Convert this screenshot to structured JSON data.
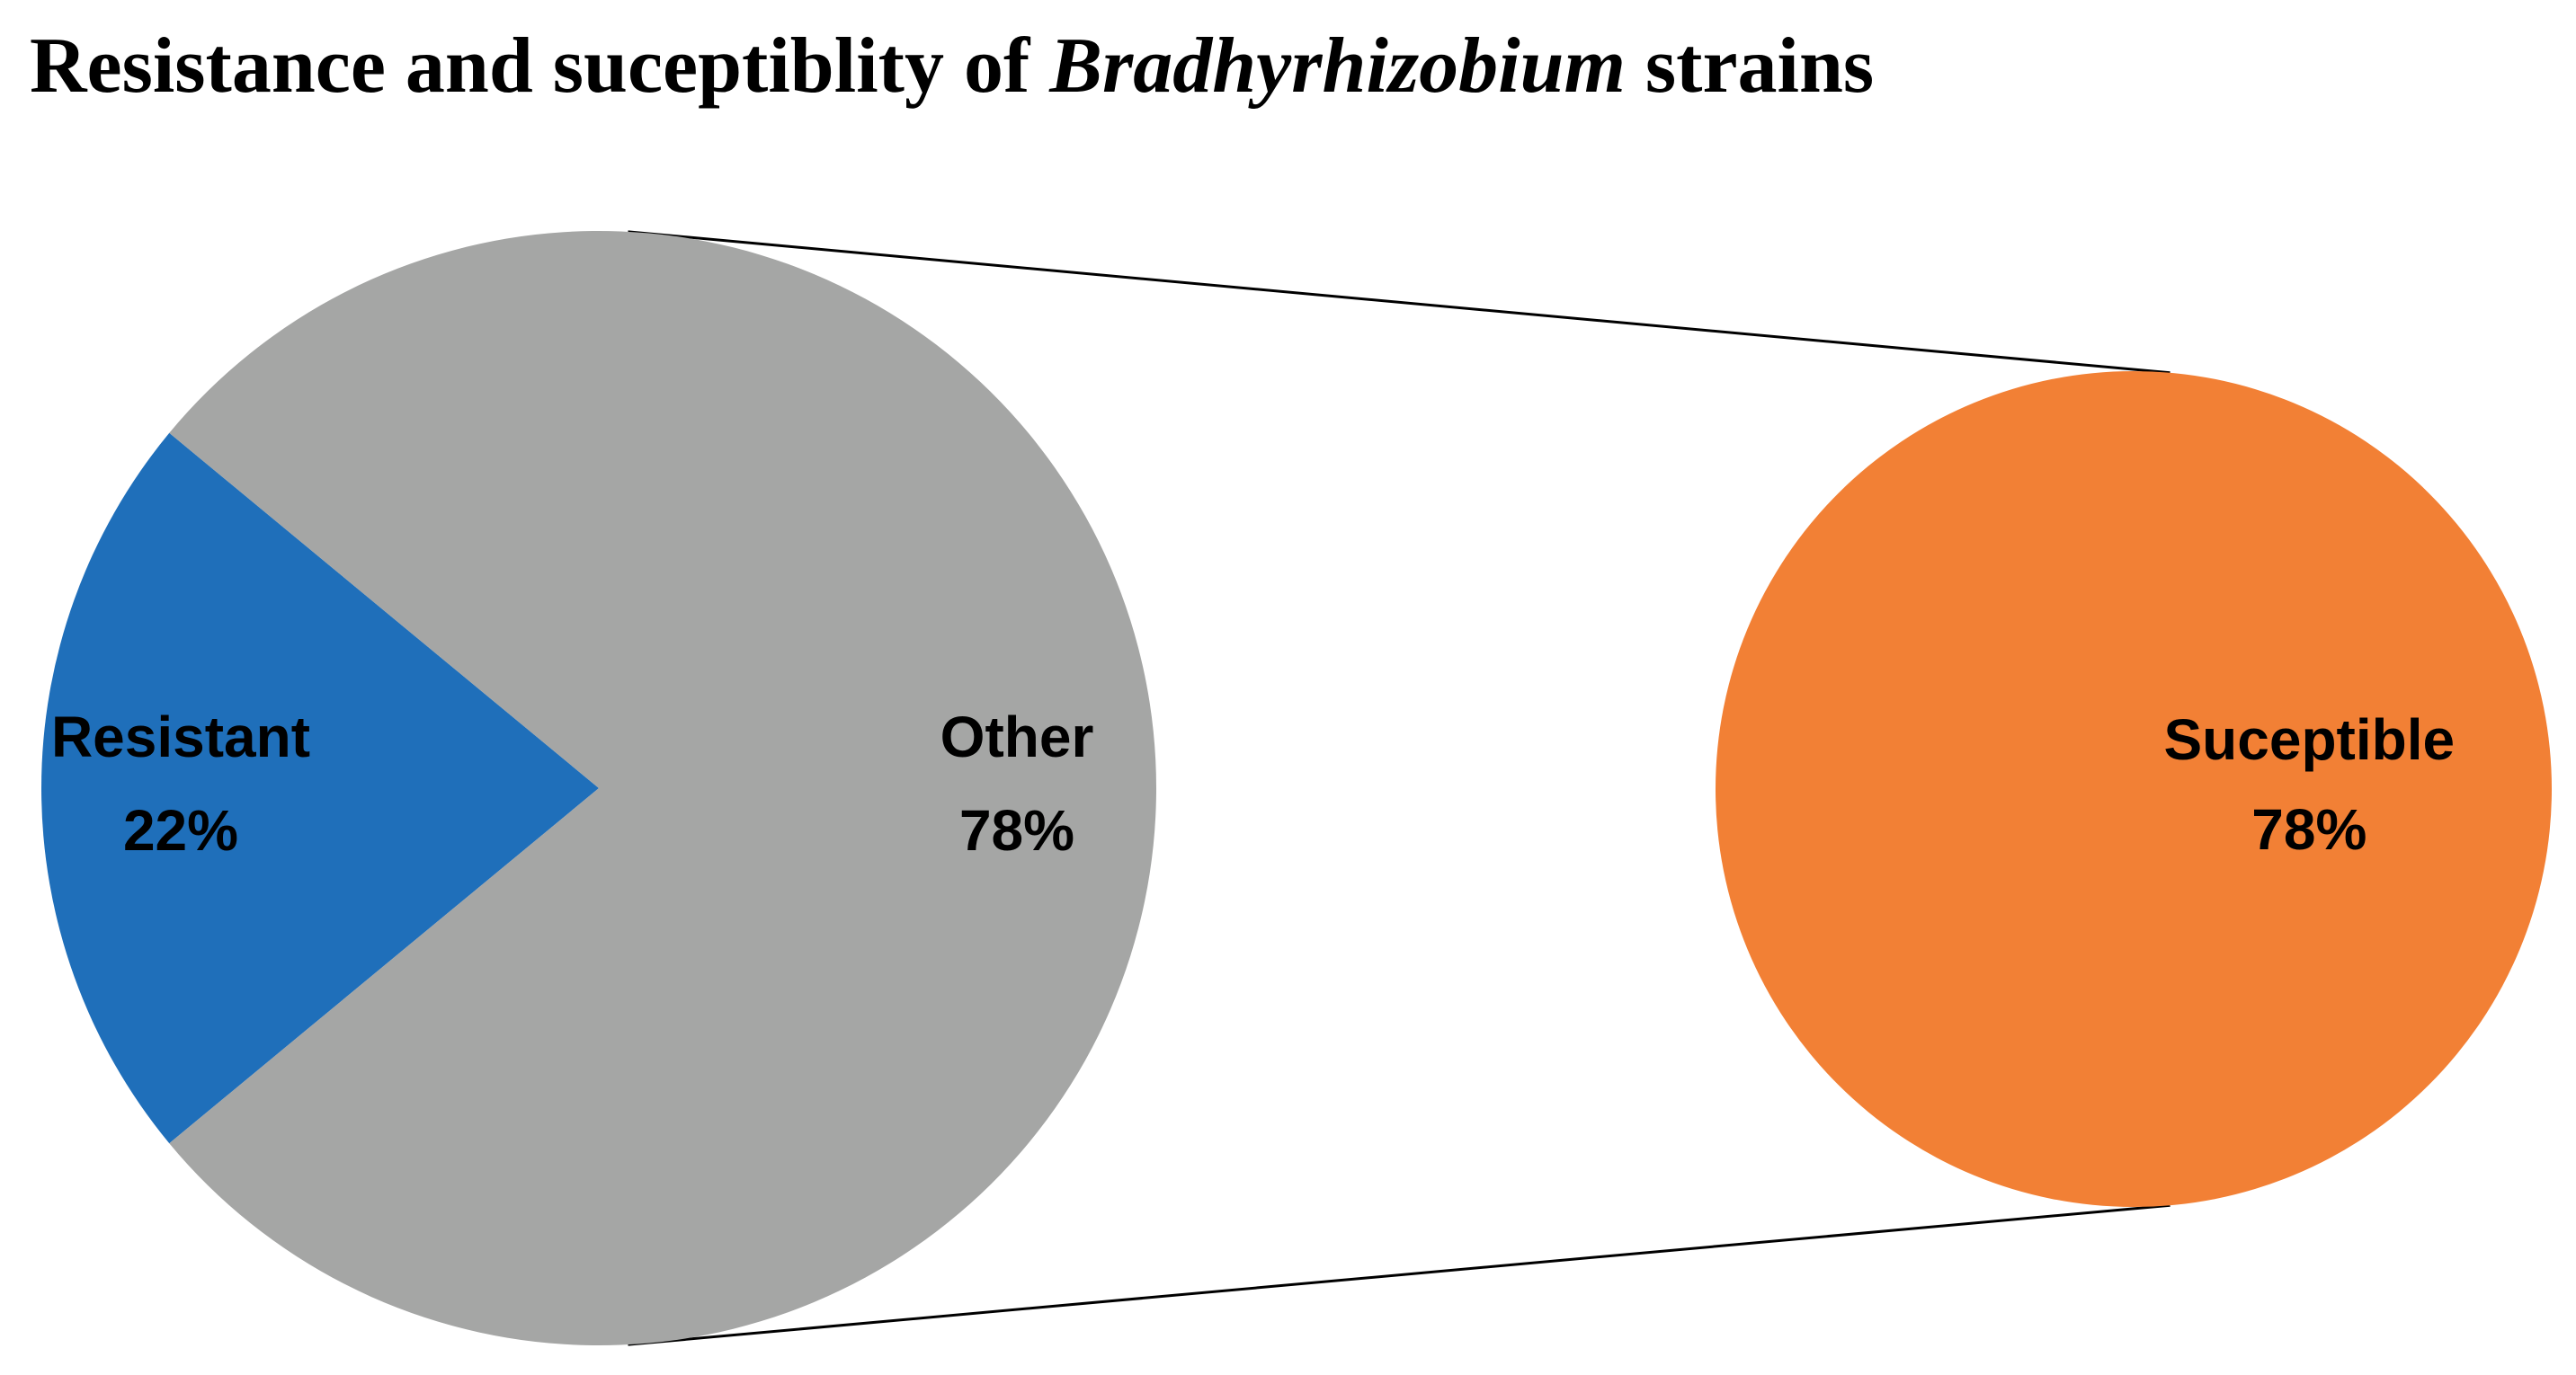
{
  "chart_data": {
    "type": "pie",
    "title_parts": [
      "Resistance and suceptiblity of ",
      "Bradhyrhizobium",
      " strains"
    ],
    "categories": [
      "Resistant",
      "Other"
    ],
    "values": [
      22,
      78
    ],
    "value_labels": [
      "22%",
      "78%"
    ],
    "colors": [
      "#1f6fba",
      "#a5a6a5"
    ],
    "secondary": {
      "categories": [
        "Suceptible"
      ],
      "values": [
        78
      ],
      "value_labels": [
        "78%"
      ],
      "colors": [
        "#f28035"
      ]
    }
  }
}
